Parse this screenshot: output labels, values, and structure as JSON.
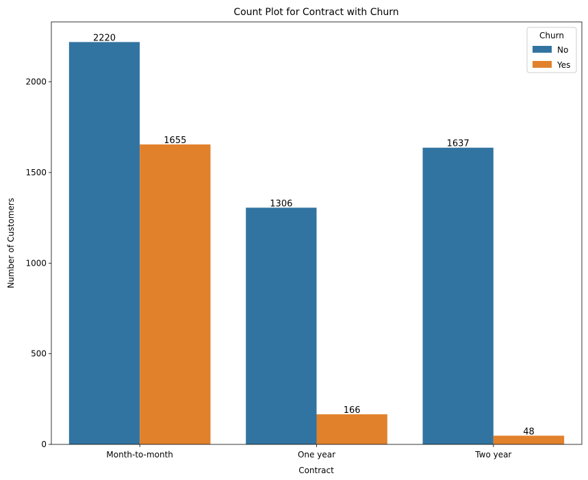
{
  "chart_data": {
    "type": "bar",
    "title": "Count Plot for Contract with Churn",
    "xlabel": "Contract",
    "ylabel": "Number of Customers",
    "categories": [
      "Month-to-month",
      "One year",
      "Two year"
    ],
    "series": [
      {
        "name": "No",
        "values": [
          2220,
          1306,
          1637
        ],
        "color": "#3274a1"
      },
      {
        "name": "Yes",
        "values": [
          1655,
          166,
          48
        ],
        "color": "#e1812c"
      }
    ],
    "ylim": [
      0,
      2331
    ],
    "yticks": [
      0,
      500,
      1000,
      1500,
      2000
    ],
    "grid": false,
    "legend": {
      "title": "Churn",
      "position": "top-right"
    }
  }
}
